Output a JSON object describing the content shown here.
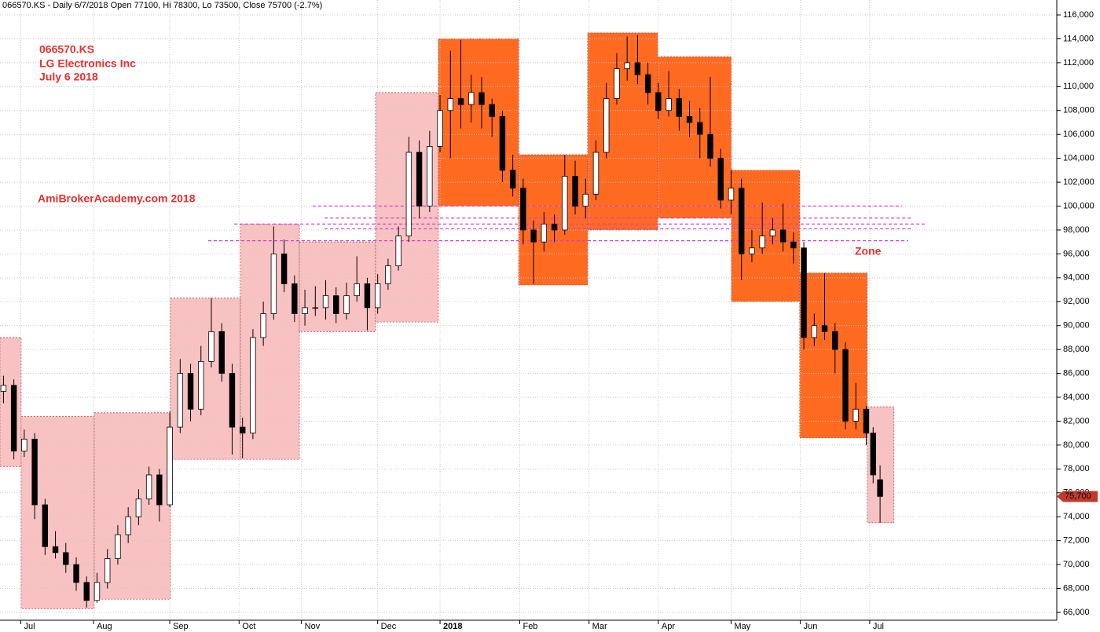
{
  "chart_data": {
    "type": "candlestick",
    "title": "066570.KS - Daily 6/7/2018 Open 77100, Hi 78300, Lo 73500, Close 75700 (-2.7%)",
    "annotations": [
      "066570.KS",
      "LG Electronics Inc",
      "July 6 2018",
      "AmiBrokerAcademy.com  2018",
      "Zone"
    ],
    "up_color": "#ffffff",
    "down_color": "#000000",
    "grid": true,
    "xlim": [
      0,
      305
    ],
    "xticks": [
      {
        "value": 6,
        "label": "Jul"
      },
      {
        "value": 27,
        "label": "Aug"
      },
      {
        "value": 49,
        "label": "Sep"
      },
      {
        "value": 69,
        "label": "Oct"
      },
      {
        "value": 87,
        "label": "Nov"
      },
      {
        "value": 109,
        "label": "Dec"
      },
      {
        "value": 127,
        "label": "2018"
      },
      {
        "value": 150,
        "label": "Feb"
      },
      {
        "value": 170,
        "label": "Mar"
      },
      {
        "value": 190,
        "label": "Apr"
      },
      {
        "value": 211,
        "label": "May"
      },
      {
        "value": 231,
        "label": "Jun"
      },
      {
        "value": 251,
        "label": "Jul"
      }
    ],
    "ylim": [
      65340,
      117250
    ],
    "yticks": [
      {
        "value": 66000,
        "label": "66,000"
      },
      {
        "value": 68000,
        "label": "68,000"
      },
      {
        "value": 70000,
        "label": "70,000"
      },
      {
        "value": 72000,
        "label": "72,000"
      },
      {
        "value": 74000,
        "label": "74,000"
      },
      {
        "value": 76000,
        "label": "76,000"
      },
      {
        "value": 78000,
        "label": "78,000"
      },
      {
        "value": 80000,
        "label": "80,000"
      },
      {
        "value": 82000,
        "label": "82,000"
      },
      {
        "value": 84000,
        "label": "84,000"
      },
      {
        "value": 86000,
        "label": "86,000"
      },
      {
        "value": 88000,
        "label": "88,000"
      },
      {
        "value": 90000,
        "label": "90,000"
      },
      {
        "value": 92000,
        "label": "92,000"
      },
      {
        "value": 94000,
        "label": "94,000"
      },
      {
        "value": 96000,
        "label": "96,000"
      },
      {
        "value": 98000,
        "label": "98,000"
      },
      {
        "value": 100000,
        "label": "100,000"
      },
      {
        "value": 102000,
        "label": "102,000"
      },
      {
        "value": 104000,
        "label": "104,000"
      },
      {
        "value": 106000,
        "label": "106,000"
      },
      {
        "value": 108000,
        "label": "108,000"
      },
      {
        "value": 110000,
        "label": "110,000"
      },
      {
        "value": 112000,
        "label": "112,000"
      },
      {
        "value": 114000,
        "label": "114,000"
      },
      {
        "value": 116000,
        "label": "116,000"
      }
    ],
    "last_price": {
      "value": 75700,
      "label": "75,700",
      "color": "#c0392b"
    },
    "zones": [
      {
        "x": [
          0,
          6.1
        ],
        "y": [
          89000,
          78200
        ],
        "color": "#f9c2c2"
      },
      {
        "x": [
          6.1,
          27.2
        ],
        "y": [
          82400,
          66300
        ],
        "color": "#f9c2c2"
      },
      {
        "x": [
          27.2,
          49.2
        ],
        "y": [
          82700,
          67100
        ],
        "color": "#f9c2c2"
      },
      {
        "x": [
          49.2,
          69.4
        ],
        "y": [
          92300,
          78800
        ],
        "color": "#f9c2c2"
      },
      {
        "x": [
          69.4,
          86.4
        ],
        "y": [
          98500,
          78800
        ],
        "color": "#f9c2c2"
      },
      {
        "x": [
          86.4,
          108.4
        ],
        "y": [
          97000,
          89500
        ],
        "color": "#f9c2c2"
      },
      {
        "x": [
          108.4,
          126.5
        ],
        "y": [
          109500,
          90300
        ],
        "color": "#f9c2c2"
      },
      {
        "x": [
          126.5,
          149.7
        ],
        "y": [
          114000,
          100000
        ],
        "color": "#ff6a21"
      },
      {
        "x": [
          149.7,
          169.6
        ],
        "y": [
          104300,
          93400
        ],
        "color": "#ff6a21"
      },
      {
        "x": [
          169.6,
          189.8
        ],
        "y": [
          114500,
          98000
        ],
        "color": "#ff6a21"
      },
      {
        "x": [
          189.8,
          211.1
        ],
        "y": [
          112500,
          99000
        ],
        "color": "#ff6a21"
      },
      {
        "x": [
          211.1,
          230.8
        ],
        "y": [
          103000,
          92000
        ],
        "color": "#ff6a21"
      },
      {
        "x": [
          230.8,
          250.3
        ],
        "y": [
          94400,
          80600
        ],
        "color": "#ff6a21"
      },
      {
        "x": [
          250.3,
          258
        ],
        "y": [
          83200,
          73500
        ],
        "color": "#f9c2c2"
      }
    ],
    "levels": [
      {
        "value": 100000,
        "x": [
          90.2,
          260.3
        ]
      },
      {
        "value": 99000,
        "x": [
          93.7,
          263.5
        ]
      },
      {
        "value": 98500,
        "x": [
          67.6,
          267.1
        ]
      },
      {
        "value": 98100,
        "x": [
          93.7,
          263.5
        ]
      },
      {
        "value": 97100,
        "x": [
          60.1,
          262.1
        ]
      }
    ],
    "level_color": "#d33ce0",
    "candles": [
      [
        1,
        84500,
        85800,
        83500,
        85000
      ],
      [
        4,
        85000,
        85500,
        78800,
        79500
      ],
      [
        7,
        79500,
        81300,
        79000,
        80500
      ],
      [
        10,
        80500,
        81000,
        73800,
        75000
      ],
      [
        13,
        75000,
        75500,
        70800,
        71500
      ],
      [
        16,
        71500,
        72800,
        70500,
        71000
      ],
      [
        19,
        71000,
        71800,
        69300,
        70000
      ],
      [
        22,
        70000,
        70600,
        67800,
        68500
      ],
      [
        25,
        68500,
        69000,
        66400,
        67000
      ],
      [
        28,
        67000,
        69300,
        66800,
        68500
      ],
      [
        31,
        68500,
        71300,
        68000,
        70500
      ],
      [
        34,
        70500,
        73300,
        70000,
        72500
      ],
      [
        37,
        72500,
        74800,
        71800,
        74000
      ],
      [
        40,
        74000,
        76300,
        73300,
        75500
      ],
      [
        43,
        75500,
        78200,
        75000,
        77500
      ],
      [
        46,
        77500,
        78000,
        73600,
        75000
      ],
      [
        49,
        75000,
        82800,
        74800,
        81500
      ],
      [
        52,
        81500,
        87200,
        81000,
        86000
      ],
      [
        55,
        86000,
        86800,
        82000,
        83000
      ],
      [
        58,
        83000,
        88300,
        82500,
        87000
      ],
      [
        61,
        87000,
        92300,
        86500,
        89500
      ],
      [
        64,
        89500,
        90200,
        85300,
        86000
      ],
      [
        67,
        86000,
        86800,
        79200,
        81500
      ],
      [
        70,
        81500,
        82300,
        78900,
        81000
      ],
      [
        73,
        81000,
        89700,
        80500,
        89000
      ],
      [
        76,
        89000,
        92000,
        88300,
        91000
      ],
      [
        79,
        91000,
        98300,
        90500,
        96000
      ],
      [
        82,
        96000,
        97200,
        92800,
        93500
      ],
      [
        85,
        93500,
        94200,
        90300,
        91000
      ],
      [
        88,
        91000,
        93000,
        90000,
        91500
      ],
      [
        91,
        91500,
        93300,
        90800,
        91500
      ],
      [
        94,
        91500,
        93800,
        90500,
        92500
      ],
      [
        97,
        92500,
        93200,
        90200,
        91000
      ],
      [
        100,
        91000,
        93600,
        90500,
        92500
      ],
      [
        103,
        92500,
        95800,
        92000,
        93500
      ],
      [
        106,
        93500,
        94000,
        89600,
        91500
      ],
      [
        109,
        91500,
        94300,
        91000,
        93500
      ],
      [
        112,
        93500,
        95600,
        93000,
        95000
      ],
      [
        115,
        95000,
        98300,
        94600,
        97500
      ],
      [
        118,
        97500,
        105800,
        97000,
        104500
      ],
      [
        121,
        104500,
        105500,
        99000,
        100000
      ],
      [
        124,
        100000,
        106300,
        99500,
        105000
      ],
      [
        127,
        105000,
        109300,
        104500,
        108000
      ],
      [
        130,
        108000,
        113000,
        104000,
        109000
      ],
      [
        133,
        109000,
        113900,
        106500,
        108500
      ],
      [
        136,
        108500,
        111000,
        107000,
        109500
      ],
      [
        139,
        109500,
        110800,
        106500,
        108500
      ],
      [
        142,
        108500,
        109000,
        105800,
        107500
      ],
      [
        145,
        107500,
        108000,
        102000,
        103000
      ],
      [
        148,
        103000,
        104300,
        100800,
        101500
      ],
      [
        151,
        101500,
        102300,
        96800,
        98000
      ],
      [
        154,
        98000,
        98800,
        93500,
        97000
      ],
      [
        157,
        97000,
        99500,
        96200,
        98500
      ],
      [
        160,
        98500,
        99300,
        97000,
        98000
      ],
      [
        163,
        98000,
        104300,
        97600,
        102500
      ],
      [
        166,
        102500,
        103800,
        99300,
        100000
      ],
      [
        169,
        100000,
        102300,
        99000,
        101000
      ],
      [
        172,
        101000,
        105500,
        100500,
        104500
      ],
      [
        175,
        104500,
        110300,
        104000,
        109000
      ],
      [
        178,
        109000,
        112800,
        108500,
        111500
      ],
      [
        181,
        111500,
        114200,
        110500,
        112000
      ],
      [
        184,
        112000,
        114300,
        110200,
        111000
      ],
      [
        187,
        111000,
        112000,
        108500,
        109500
      ],
      [
        190,
        109500,
        110300,
        107300,
        108000
      ],
      [
        193,
        108000,
        111300,
        107500,
        109000
      ],
      [
        196,
        109000,
        109800,
        106300,
        107500
      ],
      [
        199,
        107500,
        108800,
        105800,
        107000
      ],
      [
        202,
        107000,
        108200,
        104000,
        106000
      ],
      [
        205,
        106000,
        110800,
        103300,
        104000
      ],
      [
        208,
        104000,
        104800,
        99800,
        100500
      ],
      [
        211,
        100500,
        103000,
        99300,
        101500
      ],
      [
        214,
        101500,
        102300,
        93800,
        96000
      ],
      [
        217,
        96000,
        98000,
        95300,
        96500
      ],
      [
        220,
        96500,
        100300,
        96000,
        97500
      ],
      [
        223,
        97500,
        99000,
        96800,
        98000
      ],
      [
        226,
        98000,
        100200,
        96200,
        97000
      ],
      [
        229,
        97000,
        97800,
        95200,
        96500
      ],
      [
        232,
        96500,
        97000,
        88000,
        89000
      ],
      [
        235,
        89000,
        91000,
        88300,
        90000
      ],
      [
        238,
        90000,
        94400,
        88800,
        89500
      ],
      [
        241,
        89500,
        90200,
        86000,
        88000
      ],
      [
        244,
        88000,
        88600,
        81300,
        82000
      ],
      [
        247,
        82000,
        85200,
        81300,
        83000
      ],
      [
        250,
        83000,
        83300,
        80000,
        81000
      ],
      [
        252,
        81000,
        81500,
        76800,
        77500
      ],
      [
        254,
        77100,
        78300,
        73500,
        75700
      ]
    ]
  }
}
